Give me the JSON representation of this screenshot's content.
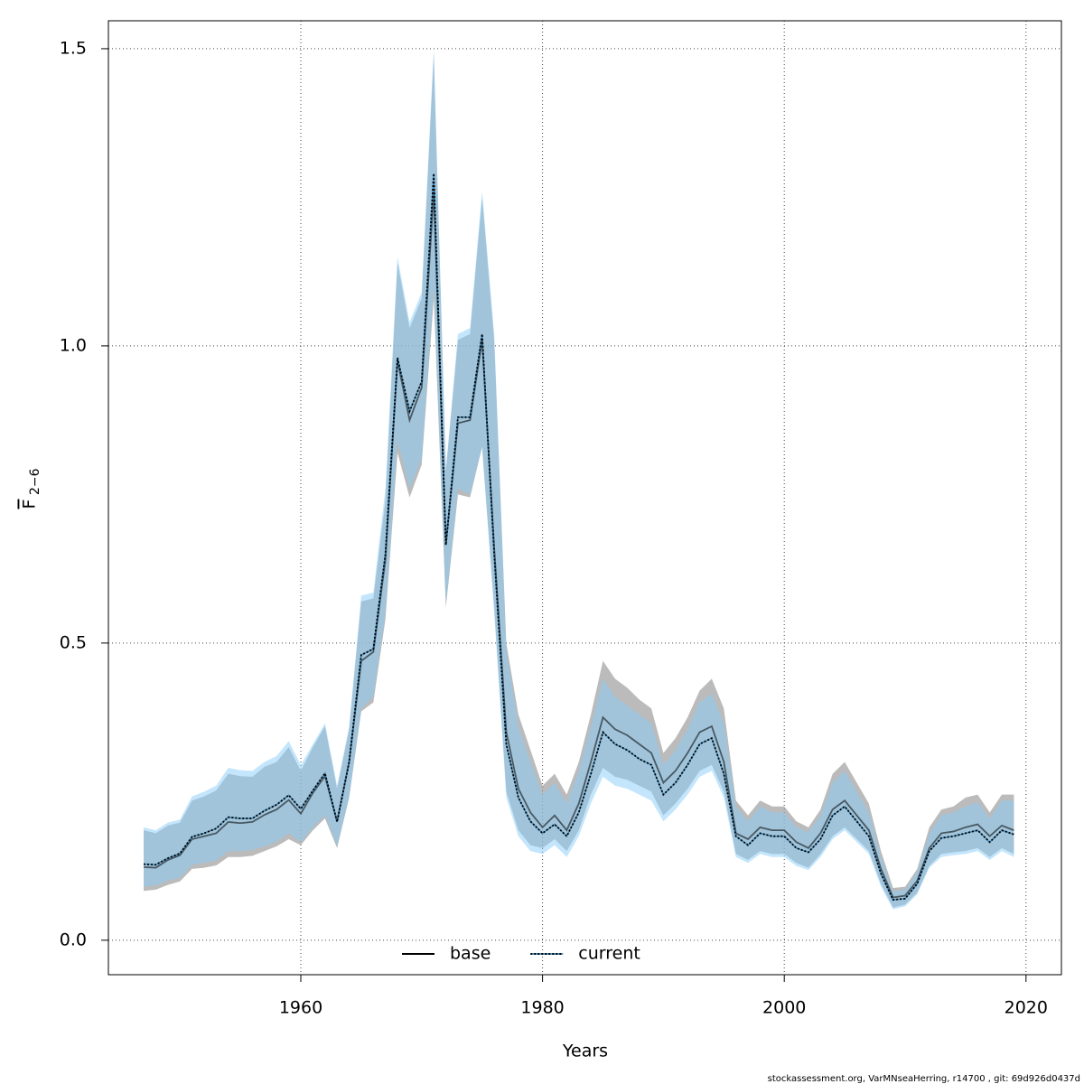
{
  "chart_data": {
    "type": "line-band",
    "xlabel": "Years",
    "ylabel_main": "F",
    "ylabel_sub": "2−6",
    "footer": "stockassessment.org, VarMNseaHerring, r14700 , git: 69d926d0437d",
    "xlim": [
      1944.08,
      2022.93
    ],
    "ylim": [
      -0.058,
      1.547
    ],
    "xticks": [
      1960,
      1980,
      2000,
      2020
    ],
    "yticks": [
      {
        "value": 0,
        "label": "0.0"
      },
      0.5,
      {
        "value": 1,
        "label": "1.0"
      },
      1.5
    ],
    "grid": true,
    "legend": "bottom",
    "x": [
      1947,
      1948,
      1949,
      1950,
      1951,
      1952,
      1953,
      1954,
      1955,
      1956,
      1957,
      1958,
      1959,
      1960,
      1961,
      1962,
      1963,
      1964,
      1965,
      1966,
      1967,
      1968,
      1969,
      1970,
      1971,
      1972,
      1973,
      1974,
      1975,
      1976,
      1977,
      1978,
      1979,
      1980,
      1981,
      1982,
      1983,
      1984,
      1985,
      1986,
      1987,
      1988,
      1989,
      1990,
      1991,
      1992,
      1993,
      1994,
      1995,
      1996,
      1997,
      1998,
      1999,
      2000,
      2001,
      2002,
      2003,
      2004,
      2005,
      2006,
      2007,
      2008,
      2009,
      2010,
      2011,
      2012,
      2013,
      2014,
      2015,
      2016,
      2017,
      2018,
      2019
    ],
    "series": [
      {
        "name": "base",
        "color": "#000000",
        "dash": "solid",
        "band_color": "rgba(150,150,150,0.65)",
        "values": [
          0.123,
          0.122,
          0.135,
          0.143,
          0.17,
          0.175,
          0.18,
          0.199,
          0.197,
          0.199,
          0.211,
          0.22,
          0.236,
          0.213,
          0.248,
          0.276,
          0.2,
          0.3,
          0.47,
          0.485,
          0.64,
          0.975,
          0.875,
          0.93,
          1.26,
          0.665,
          0.87,
          0.875,
          1.01,
          0.66,
          0.35,
          0.255,
          0.215,
          0.19,
          0.21,
          0.185,
          0.23,
          0.3,
          0.375,
          0.355,
          0.345,
          0.33,
          0.315,
          0.265,
          0.285,
          0.315,
          0.35,
          0.36,
          0.3,
          0.18,
          0.17,
          0.19,
          0.185,
          0.185,
          0.165,
          0.155,
          0.18,
          0.22,
          0.235,
          0.21,
          0.185,
          0.12,
          0.072,
          0.075,
          0.1,
          0.155,
          0.18,
          0.183,
          0.19,
          0.195,
          0.175,
          0.193,
          0.185
        ],
        "lower": [
          0.083,
          0.085,
          0.093,
          0.099,
          0.12,
          0.122,
          0.126,
          0.14,
          0.14,
          0.142,
          0.15,
          0.158,
          0.17,
          0.16,
          0.185,
          0.205,
          0.155,
          0.24,
          0.385,
          0.4,
          0.54,
          0.82,
          0.745,
          0.8,
          1.08,
          0.56,
          0.75,
          0.745,
          0.83,
          0.56,
          0.25,
          0.185,
          0.16,
          0.155,
          0.17,
          0.15,
          0.185,
          0.245,
          0.29,
          0.275,
          0.27,
          0.26,
          0.25,
          0.21,
          0.23,
          0.255,
          0.285,
          0.295,
          0.25,
          0.145,
          0.135,
          0.15,
          0.145,
          0.145,
          0.13,
          0.122,
          0.145,
          0.175,
          0.19,
          0.17,
          0.15,
          0.095,
          0.055,
          0.06,
          0.08,
          0.125,
          0.145,
          0.148,
          0.15,
          0.155,
          0.14,
          0.155,
          0.145
        ],
        "upper": [
          0.185,
          0.18,
          0.193,
          0.198,
          0.235,
          0.242,
          0.252,
          0.28,
          0.276,
          0.275,
          0.292,
          0.3,
          0.325,
          0.285,
          0.325,
          0.36,
          0.255,
          0.355,
          0.57,
          0.575,
          0.74,
          1.14,
          1.03,
          1.08,
          1.49,
          0.79,
          1.01,
          1.02,
          1.25,
          1.01,
          0.5,
          0.38,
          0.32,
          0.26,
          0.28,
          0.245,
          0.3,
          0.38,
          0.47,
          0.44,
          0.425,
          0.405,
          0.39,
          0.315,
          0.34,
          0.375,
          0.42,
          0.44,
          0.39,
          0.235,
          0.21,
          0.235,
          0.225,
          0.225,
          0.2,
          0.19,
          0.22,
          0.28,
          0.3,
          0.265,
          0.23,
          0.15,
          0.088,
          0.09,
          0.12,
          0.19,
          0.22,
          0.225,
          0.24,
          0.245,
          0.215,
          0.245,
          0.245
        ]
      },
      {
        "name": "current",
        "color": "#000000",
        "dash": "dotted",
        "band_color": "rgba(135,206,250,0.5)",
        "values": [
          0.128,
          0.127,
          0.138,
          0.146,
          0.174,
          0.18,
          0.188,
          0.207,
          0.205,
          0.205,
          0.218,
          0.228,
          0.244,
          0.221,
          0.252,
          0.281,
          0.199,
          0.3,
          0.48,
          0.49,
          0.65,
          0.98,
          0.89,
          0.94,
          1.29,
          0.665,
          0.88,
          0.88,
          1.02,
          0.65,
          0.33,
          0.24,
          0.2,
          0.18,
          0.195,
          0.175,
          0.215,
          0.28,
          0.35,
          0.33,
          0.32,
          0.305,
          0.295,
          0.245,
          0.265,
          0.295,
          0.33,
          0.34,
          0.28,
          0.175,
          0.16,
          0.18,
          0.175,
          0.175,
          0.155,
          0.148,
          0.17,
          0.21,
          0.225,
          0.2,
          0.175,
          0.112,
          0.068,
          0.07,
          0.095,
          0.15,
          0.172,
          0.175,
          0.18,
          0.185,
          0.165,
          0.185,
          0.178
        ],
        "lower": [
          0.09,
          0.092,
          0.1,
          0.105,
          0.127,
          0.13,
          0.134,
          0.15,
          0.15,
          0.152,
          0.158,
          0.166,
          0.18,
          0.165,
          0.19,
          0.21,
          0.158,
          0.24,
          0.39,
          0.41,
          0.55,
          0.84,
          0.76,
          0.81,
          1.1,
          0.565,
          0.76,
          0.75,
          0.83,
          0.55,
          0.24,
          0.175,
          0.15,
          0.145,
          0.16,
          0.14,
          0.175,
          0.23,
          0.275,
          0.26,
          0.255,
          0.245,
          0.235,
          0.2,
          0.22,
          0.245,
          0.275,
          0.285,
          0.24,
          0.14,
          0.13,
          0.145,
          0.14,
          0.14,
          0.125,
          0.118,
          0.14,
          0.17,
          0.185,
          0.165,
          0.145,
          0.09,
          0.052,
          0.057,
          0.077,
          0.122,
          0.14,
          0.143,
          0.145,
          0.15,
          0.135,
          0.15,
          0.14
        ],
        "upper": [
          0.19,
          0.185,
          0.198,
          0.203,
          0.242,
          0.25,
          0.26,
          0.29,
          0.286,
          0.285,
          0.3,
          0.31,
          0.335,
          0.295,
          0.33,
          0.365,
          0.26,
          0.36,
          0.58,
          0.585,
          0.76,
          1.15,
          1.04,
          1.09,
          1.5,
          0.79,
          1.02,
          1.03,
          1.26,
          1.02,
          0.49,
          0.36,
          0.3,
          0.245,
          0.265,
          0.23,
          0.285,
          0.36,
          0.44,
          0.41,
          0.395,
          0.38,
          0.365,
          0.295,
          0.32,
          0.355,
          0.4,
          0.415,
          0.365,
          0.225,
          0.2,
          0.225,
          0.215,
          0.215,
          0.19,
          0.182,
          0.21,
          0.265,
          0.285,
          0.25,
          0.215,
          0.14,
          0.082,
          0.085,
          0.115,
          0.18,
          0.21,
          0.215,
          0.225,
          0.232,
          0.205,
          0.235,
          0.235
        ]
      }
    ]
  }
}
